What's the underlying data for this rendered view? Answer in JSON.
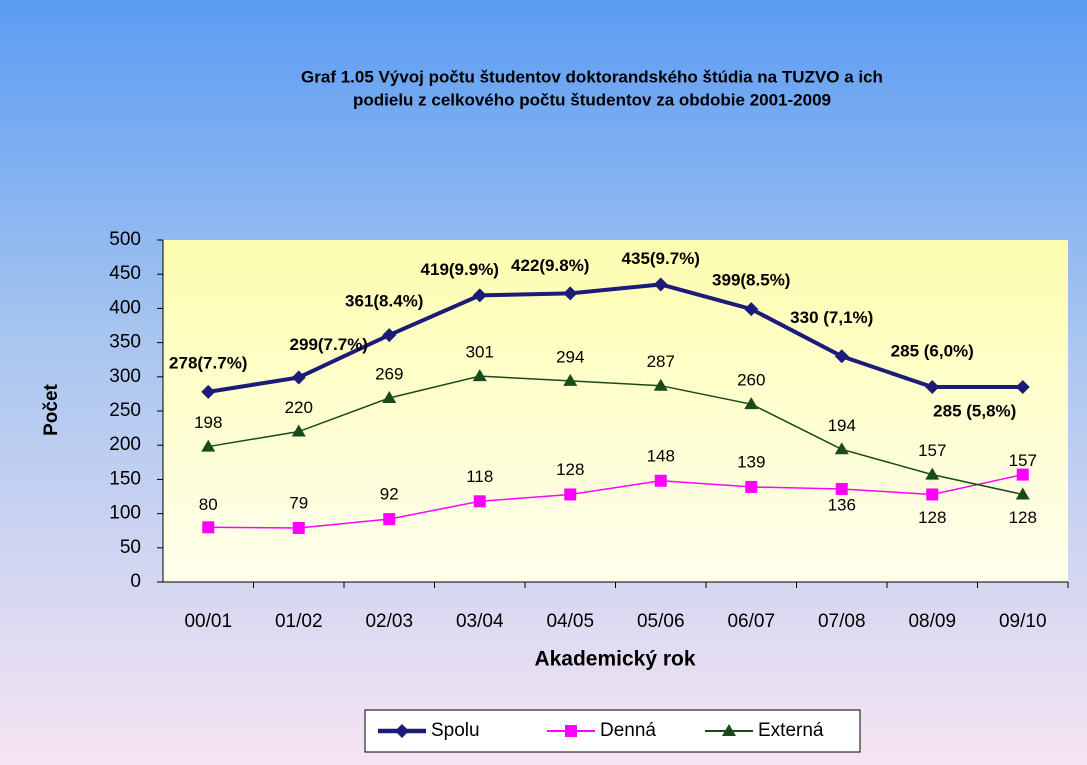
{
  "chart_data": {
    "type": "line",
    "title": [
      "Graf 1.05 Vývoj počtu študentov doktorandského  štúdia  na   TUZVO a ich",
      "podielu z celkového počtu študentov za obdobie 2001-2009"
    ],
    "x_label": "Akademický rok",
    "y_label": "Počet",
    "categories": [
      "00/01",
      "01/02",
      "02/03",
      "03/04",
      "04/05",
      "05/06",
      "06/07",
      "07/08",
      "08/09",
      "09/10"
    ],
    "series": [
      {
        "name": "Spolu",
        "color": "#1c1c78",
        "marker": "diamond",
        "values": [
          278,
          299,
          361,
          419,
          422,
          435,
          399,
          330,
          285,
          285
        ],
        "value_labels": [
          "278(7.7%)",
          "299(7.7%)",
          "361(8.4%)",
          "419(9.9%)",
          "422(9.8%)",
          "435(9.7%)",
          "399(8.5%)",
          "330 (7,1%)",
          "285 (6,0%)",
          "285 (5,8%)"
        ]
      },
      {
        "name": "Denná",
        "color": "#ff00ff",
        "marker": "square",
        "values": [
          80,
          79,
          92,
          118,
          128,
          148,
          139,
          136,
          128,
          157
        ]
      },
      {
        "name": "Externá",
        "color": "#1a4a1a",
        "marker": "triangle",
        "values": [
          198,
          220,
          269,
          301,
          294,
          287,
          260,
          194,
          157,
          128
        ]
      }
    ],
    "ylim": [
      0,
      500
    ],
    "yticks": [
      0,
      50,
      100,
      150,
      200,
      250,
      300,
      350,
      400,
      450,
      500
    ],
    "legend": "bottom"
  }
}
